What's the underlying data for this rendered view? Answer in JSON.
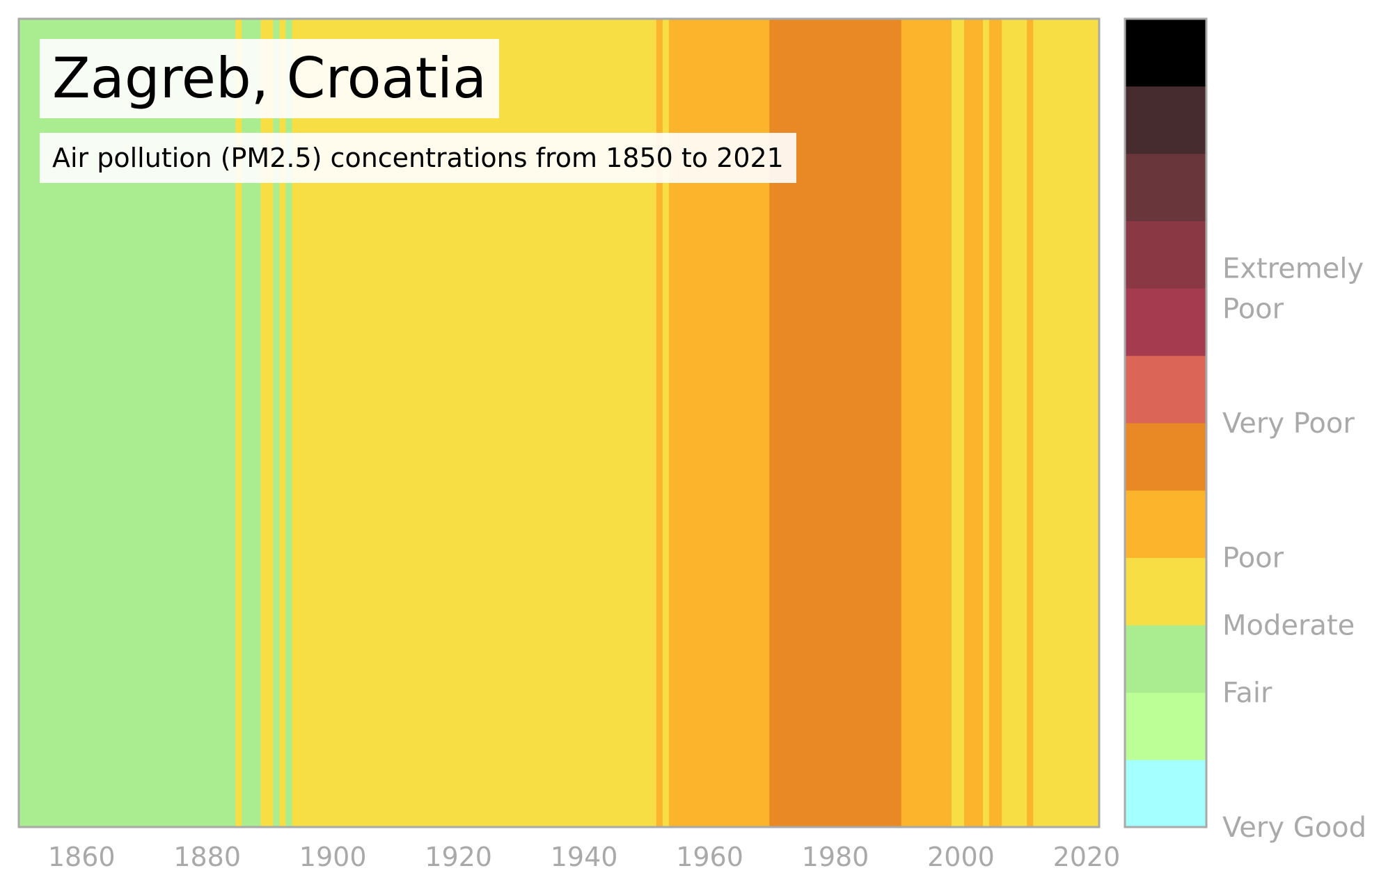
{
  "title": "Zagreb, Croatia",
  "subtitle": "Air pollution (PM2.5) concentrations from 1850 to 2021",
  "chart_data": {
    "type": "heatmap",
    "x_range": [
      1850,
      2022
    ],
    "x_ticks": [
      "1860",
      "1880",
      "1900",
      "1920",
      "1940",
      "1960",
      "1980",
      "2000",
      "2020"
    ],
    "grid": false,
    "colors": {
      "very_good": "#a4ffff",
      "good": "#bbff96",
      "fair": "#aaec90",
      "moderate": "#f8de45",
      "poor_low": "#fbb42c",
      "poor_high": "#e98925",
      "very_poor_low": "#db6658",
      "very_poor_high": "#a53b4e",
      "extremely_poor_1": "#8b3845",
      "extremely_poor_2": "#68363b",
      "extremely_poor_3": "#472c2f",
      "max": "#000000",
      "frame": "#a9a9a9",
      "tick_text": "#a9a9a9"
    },
    "stripes": [
      {
        "from": 1850,
        "to": 1884.5,
        "level": "fair"
      },
      {
        "from": 1884.5,
        "to": 1885.5,
        "level": "moderate"
      },
      {
        "from": 1885.5,
        "to": 1888.5,
        "level": "fair"
      },
      {
        "from": 1888.5,
        "to": 1890.5,
        "level": "moderate"
      },
      {
        "from": 1890.5,
        "to": 1891.5,
        "level": "fair"
      },
      {
        "from": 1891.5,
        "to": 1892.5,
        "level": "moderate"
      },
      {
        "from": 1892.5,
        "to": 1893.5,
        "level": "fair"
      },
      {
        "from": 1893.5,
        "to": 1951.5,
        "level": "moderate"
      },
      {
        "from": 1951.5,
        "to": 1952.5,
        "level": "poor_low"
      },
      {
        "from": 1952.5,
        "to": 1953.5,
        "level": "moderate"
      },
      {
        "from": 1953.5,
        "to": 1969.5,
        "level": "poor_low"
      },
      {
        "from": 1969.5,
        "to": 1990.5,
        "level": "poor_high"
      },
      {
        "from": 1990.5,
        "to": 1998.5,
        "level": "poor_low"
      },
      {
        "from": 1998.5,
        "to": 2000.5,
        "level": "moderate"
      },
      {
        "from": 2000.5,
        "to": 2003.5,
        "level": "poor_low"
      },
      {
        "from": 2003.5,
        "to": 2004.5,
        "level": "moderate"
      },
      {
        "from": 2004.5,
        "to": 2006.5,
        "level": "poor_low"
      },
      {
        "from": 2006.5,
        "to": 2010.5,
        "level": "moderate"
      },
      {
        "from": 2010.5,
        "to": 2011.5,
        "level": "poor_low"
      },
      {
        "from": 2011.5,
        "to": 2022,
        "level": "moderate"
      }
    ],
    "colorbar": {
      "levels": [
        "very_good",
        "good",
        "fair",
        "moderate",
        "poor_low",
        "poor_high",
        "very_poor_low",
        "very_poor_high",
        "extremely_poor_1",
        "extremely_poor_2",
        "extremely_poor_3",
        "max"
      ],
      "labels": [
        {
          "lines": [
            "Very Good"
          ],
          "at_level": 0.0
        },
        {
          "lines": [
            "Fair"
          ],
          "at_level": 2.0
        },
        {
          "lines": [
            "Moderate"
          ],
          "at_level": 3.0
        },
        {
          "lines": [
            "Poor"
          ],
          "at_level": 4.0
        },
        {
          "lines": [
            "Very Poor"
          ],
          "at_level": 6.0
        },
        {
          "lines": [
            "Extremely",
            "Poor"
          ],
          "at_level": 8.0
        }
      ]
    }
  }
}
